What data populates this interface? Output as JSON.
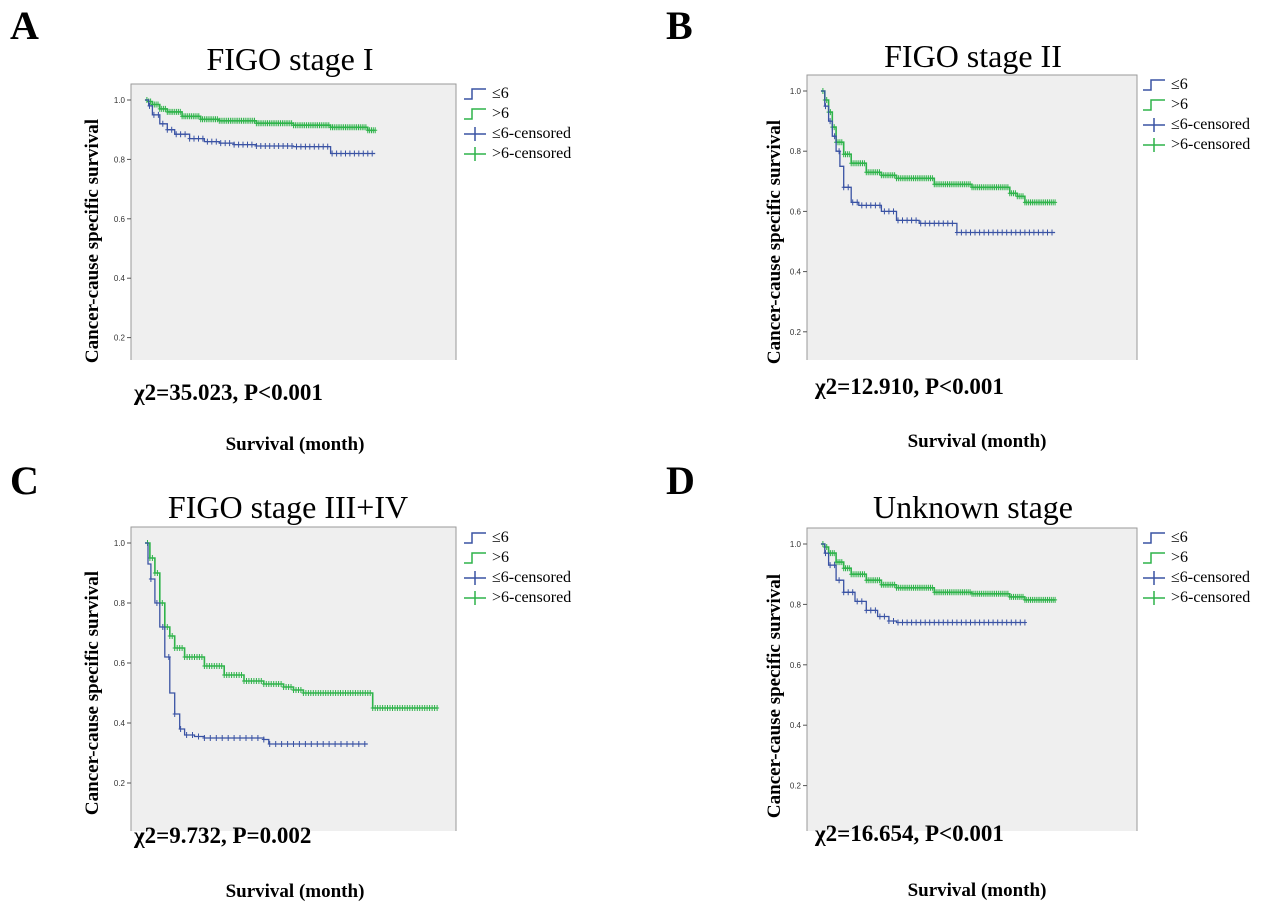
{
  "legend": {
    "le6": "≤6",
    "gt6": ">6",
    "le6_censored": "≤6-censored",
    "gt6_censored": ">6-censored"
  },
  "colors": {
    "le6": "#3a53a4",
    "gt6": "#2eb34a",
    "plot_bg": "#efefef"
  },
  "chart_data": [
    {
      "type": "line",
      "panel": "A",
      "title": "FIGO stage I",
      "xlabel": "Survival (month)",
      "ylabel": "Cancer-cause specific survival",
      "annotation": "χ2=35.023, P<0.001",
      "xlim": [
        0,
        400
      ],
      "ylim": [
        0,
        1.0
      ],
      "xticks": [
        "0",
        "100",
        "200",
        "300",
        "400"
      ],
      "yticks": [
        "0.0",
        "0.2",
        "0.4",
        "0.6",
        "0.8",
        "1.0"
      ],
      "grid": false,
      "legend_position": "outside-right",
      "series": [
        {
          "name": "≤6",
          "x": [
            0,
            5,
            10,
            20,
            30,
            40,
            60,
            80,
            100,
            120,
            150,
            200,
            230,
            250,
            310
          ],
          "y": [
            1.0,
            0.98,
            0.95,
            0.92,
            0.9,
            0.885,
            0.87,
            0.86,
            0.855,
            0.85,
            0.845,
            0.843,
            0.843,
            0.82,
            0.82
          ]
        },
        {
          "name": ">6",
          "x": [
            0,
            5,
            10,
            20,
            30,
            50,
            75,
            100,
            150,
            200,
            250,
            300,
            310
          ],
          "y": [
            1.0,
            0.995,
            0.985,
            0.97,
            0.96,
            0.945,
            0.935,
            0.93,
            0.922,
            0.915,
            0.908,
            0.898,
            0.898
          ]
        }
      ]
    },
    {
      "type": "line",
      "panel": "B",
      "title": "FIGO stage II",
      "xlabel": "Survival (month)",
      "ylabel": "Cancer-cause specific survival",
      "annotation": "χ2=12.910, P<0.001",
      "xlim": [
        0,
        400
      ],
      "ylim": [
        0,
        1.0
      ],
      "xticks": [
        "0",
        "100",
        "200",
        "300",
        "400"
      ],
      "yticks": [
        "0.0",
        "0.2",
        "0.4",
        "0.6",
        "0.8",
        "1.0"
      ],
      "grid": false,
      "legend_position": "outside-right",
      "series": [
        {
          "name": "≤6",
          "x": [
            0,
            5,
            10,
            15,
            20,
            25,
            30,
            40,
            50,
            60,
            80,
            100,
            130,
            170,
            180,
            310
          ],
          "y": [
            1.0,
            0.95,
            0.9,
            0.85,
            0.8,
            0.75,
            0.68,
            0.63,
            0.62,
            0.62,
            0.6,
            0.57,
            0.56,
            0.56,
            0.53,
            0.53
          ]
        },
        {
          "name": ">6",
          "x": [
            0,
            5,
            10,
            15,
            20,
            30,
            40,
            60,
            80,
            100,
            150,
            200,
            250,
            260,
            270,
            310
          ],
          "y": [
            1.0,
            0.97,
            0.93,
            0.88,
            0.83,
            0.79,
            0.76,
            0.73,
            0.72,
            0.71,
            0.69,
            0.68,
            0.66,
            0.65,
            0.63,
            0.63
          ]
        }
      ]
    },
    {
      "type": "line",
      "panel": "C",
      "title": "FIGO stage III+IV",
      "xlabel": "Survival (month)",
      "ylabel": "Cancer-cause specific survival",
      "annotation": "χ2=9.732, P=0.002",
      "xlim": [
        0,
        300
      ],
      "ylim": [
        0,
        1.0
      ],
      "xticks": [
        "0",
        "50",
        "100",
        "150",
        "200",
        "250",
        "300"
      ],
      "yticks": [
        "0.0",
        "0.2",
        "0.4",
        "0.6",
        "0.8",
        "1.0"
      ],
      "grid": false,
      "legend_position": "outside-right",
      "series": [
        {
          "name": "≤6",
          "x": [
            0,
            3,
            6,
            10,
            15,
            20,
            25,
            30,
            35,
            40,
            50,
            60,
            80,
            100,
            120,
            125,
            225
          ],
          "y": [
            1.0,
            0.93,
            0.88,
            0.8,
            0.72,
            0.62,
            0.5,
            0.43,
            0.38,
            0.36,
            0.355,
            0.35,
            0.35,
            0.35,
            0.345,
            0.33,
            0.33
          ]
        },
        {
          "name": ">6",
          "x": [
            0,
            5,
            10,
            15,
            20,
            25,
            30,
            40,
            60,
            80,
            100,
            120,
            140,
            150,
            160,
            200,
            225,
            230,
            295
          ],
          "y": [
            1.0,
            0.95,
            0.9,
            0.8,
            0.72,
            0.69,
            0.65,
            0.62,
            0.59,
            0.56,
            0.54,
            0.53,
            0.52,
            0.51,
            0.5,
            0.5,
            0.5,
            0.45,
            0.45
          ]
        }
      ]
    },
    {
      "type": "line",
      "panel": "D",
      "title": "Unknown stage",
      "xlabel": "Survival (month)",
      "ylabel": "Cancer-cause specific survival",
      "annotation": "χ2=16.654, P<0.001",
      "xlim": [
        0,
        400
      ],
      "ylim": [
        0,
        1.0
      ],
      "xticks": [
        "0",
        "100",
        "200",
        "300",
        "400"
      ],
      "yticks": [
        "0.0",
        "0.2",
        "0.4",
        "0.6",
        "0.8",
        "1.0"
      ],
      "grid": false,
      "legend_position": "outside-right",
      "series": [
        {
          "name": "≤6",
          "x": [
            0,
            5,
            10,
            20,
            30,
            45,
            60,
            75,
            90,
            100,
            150,
            200,
            270
          ],
          "y": [
            1.0,
            0.97,
            0.93,
            0.88,
            0.84,
            0.81,
            0.78,
            0.76,
            0.745,
            0.74,
            0.74,
            0.74,
            0.74
          ]
        },
        {
          "name": ">6",
          "x": [
            0,
            5,
            10,
            20,
            30,
            40,
            60,
            80,
            100,
            150,
            200,
            250,
            270,
            310
          ],
          "y": [
            1.0,
            0.99,
            0.97,
            0.94,
            0.92,
            0.9,
            0.88,
            0.865,
            0.855,
            0.84,
            0.835,
            0.825,
            0.815,
            0.815
          ]
        }
      ]
    }
  ]
}
